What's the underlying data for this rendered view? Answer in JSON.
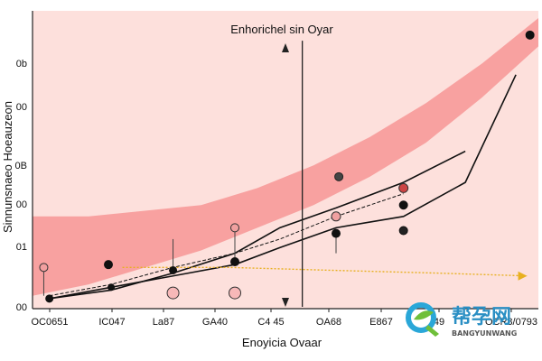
{
  "chart_data": {
    "type": "line",
    "title": "Enhorichel sin Oyar",
    "xlabel": "Enoyicia Ovaar",
    "ylabel": "Sinnunsnaeo Hoeauzeon",
    "x_tick_labels": [
      "OC0651",
      "IC047",
      "La87",
      "GA40",
      "C4 45",
      "OA68",
      "E867",
      "49",
      "OCR8/0793"
    ],
    "y_tick_labels": [
      "0b",
      "00",
      "0B",
      "00",
      "01",
      "00"
    ],
    "xlim": [
      0,
      9
    ],
    "ylim": [
      0,
      100
    ],
    "grid": false,
    "band": {
      "x": [
        0,
        1,
        2,
        3,
        4,
        5,
        6,
        7,
        8,
        9
      ],
      "lower": [
        2,
        6,
        12,
        18,
        26,
        34,
        44,
        56,
        72,
        90
      ],
      "upper": [
        30,
        30,
        32,
        34,
        40,
        48,
        58,
        70,
        84,
        100
      ]
    },
    "series": [
      {
        "x": [
          0.3,
          1.4,
          2.5,
          3.6,
          4.4,
          5.4,
          6.6,
          7.7,
          8.6
        ],
        "values": [
          1,
          5,
          9,
          13,
          19,
          26,
          30,
          42,
          80
        ],
        "style": "solid"
      },
      {
        "x": [
          0.3,
          1.4,
          2.5,
          3.6,
          4.4,
          5.4,
          6.6,
          7.7
        ],
        "values": [
          1,
          4,
          10,
          17,
          26,
          33,
          42,
          53
        ],
        "style": "solid"
      },
      {
        "x": [
          0.3,
          1.4,
          2.5,
          3.6,
          4.4,
          5.4,
          6.6
        ],
        "values": [
          2,
          6,
          12,
          17,
          22,
          30,
          38
        ],
        "style": "dashed"
      },
      {
        "x": [
          1.6,
          3.5,
          5.3,
          7.2,
          8.8
        ],
        "values": [
          12,
          12,
          11,
          10,
          9
        ],
        "style": "arrow",
        "color": "#e8b020"
      }
    ],
    "markers": [
      {
        "x": 0.2,
        "y": 12,
        "fill": "#f2a0a0",
        "stroke": "#333",
        "r": 4.5,
        "stem": [
          2,
          12
        ]
      },
      {
        "x": 0.3,
        "y": 1,
        "fill": "#111111",
        "stroke": "#111",
        "r": 4,
        "stem": null
      },
      {
        "x": 1.35,
        "y": 13,
        "fill": "#111111",
        "stroke": "#111",
        "r": 4.5,
        "stem": null
      },
      {
        "x": 1.4,
        "y": 5,
        "fill": "#111111",
        "stroke": "#111",
        "r": 3.5,
        "stem": null
      },
      {
        "x": 2.5,
        "y": 11,
        "fill": "#111111",
        "stroke": "#111",
        "r": 4,
        "stem": [
          11,
          22
        ]
      },
      {
        "x": 2.5,
        "y": 3,
        "fill": "#f7b8b8",
        "stroke": "#333",
        "r": 6.5,
        "stem": null
      },
      {
        "x": 3.6,
        "y": 26,
        "fill": "#f0a0a0",
        "stroke": "#333",
        "r": 4.5,
        "stem": [
          14,
          26
        ]
      },
      {
        "x": 3.6,
        "y": 14,
        "fill": "#111111",
        "stroke": "#111",
        "r": 4.5,
        "stem": null
      },
      {
        "x": 3.6,
        "y": 3,
        "fill": "#f7b8b8",
        "stroke": "#333",
        "r": 6.5,
        "stem": null
      },
      {
        "x": 5.45,
        "y": 44,
        "fill": "#444444",
        "stroke": "#222",
        "r": 4.5,
        "stem": null
      },
      {
        "x": 5.4,
        "y": 30,
        "fill": "#f0a0a0",
        "stroke": "#333",
        "r": 5,
        "stem": null
      },
      {
        "x": 5.4,
        "y": 24,
        "fill": "#111111",
        "stroke": "#111",
        "r": 4.5,
        "stem": [
          17,
          24
        ]
      },
      {
        "x": 6.6,
        "y": 40,
        "fill": "#cc4444",
        "stroke": "#333",
        "r": 5,
        "stem": null
      },
      {
        "x": 6.6,
        "y": 34,
        "fill": "#111111",
        "stroke": "#111",
        "r": 4.5,
        "stem": null
      },
      {
        "x": 6.6,
        "y": 25,
        "fill": "#222222",
        "stroke": "#111",
        "r": 4.5,
        "stem": null
      },
      {
        "x": 8.85,
        "y": 94,
        "fill": "#111111",
        "stroke": "#111",
        "r": 4.5,
        "stem": null
      }
    ],
    "vline": {
      "x": 4.8,
      "y0": 0,
      "y1": 92
    },
    "colors": {
      "background": "#fde0dc",
      "band": "#f58c8c"
    }
  },
  "watermark": {
    "text": "帮孕网",
    "subtext": "BANGYUNWANG",
    "icon": "q-leaf-logo-icon"
  }
}
